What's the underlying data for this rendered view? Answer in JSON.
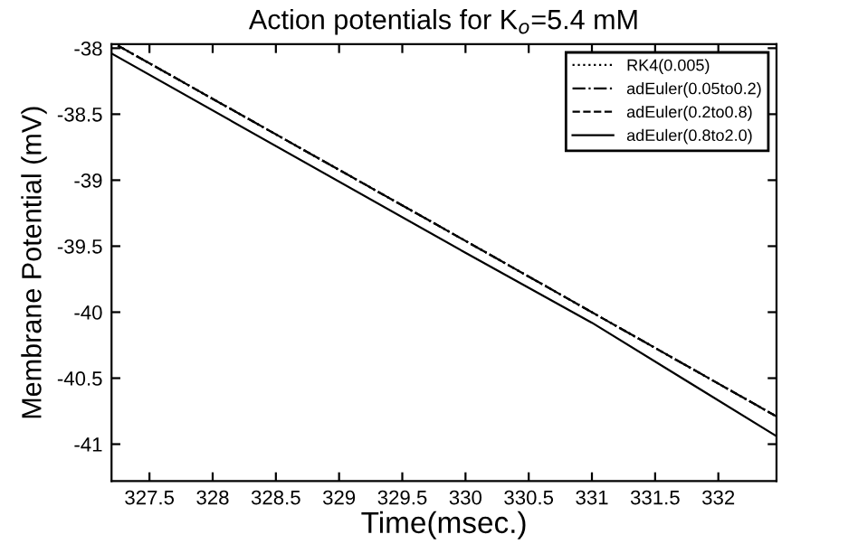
{
  "chart_data": {
    "type": "line",
    "title": "Action potentials for K$_{o}$=5.4 mM",
    "xlabel": "Time(msec.)",
    "ylabel": "Membrane Potential (mV)",
    "x": [
      327.25,
      330,
      332.46
    ],
    "series": [
      {
        "name": "RK4(0.005)",
        "color": "#000000",
        "line_style": "dotted",
        "values": [
          -37.98,
          -39.46,
          -40.79
        ]
      },
      {
        "name": "adEuler(0.05to0.2)",
        "color": "#000000",
        "line_style": "dashdot",
        "values": [
          -37.98,
          -39.46,
          -40.79
        ]
      },
      {
        "name": "adEuler(0.2to0.8)",
        "color": "#000000",
        "line_style": "dashed",
        "values": [
          -37.98,
          -39.46,
          -40.79
        ]
      },
      {
        "name": "adEuler(0.8to2.0)",
        "color": "#000000",
        "line_style": "solid",
        "x": [
          327.2,
          330,
          331,
          332.46
        ],
        "values": [
          -38.04,
          -39.55,
          -40.08,
          -40.94
        ]
      }
    ],
    "xlim": [
      327.2,
      332.46
    ],
    "ylim": [
      -41.28,
      -37.97
    ],
    "xticks": [
      327.5,
      328,
      328.5,
      329,
      329.5,
      330,
      330.5,
      331,
      331.5,
      332
    ],
    "yticks": [
      -38,
      -38.5,
      -39,
      -39.5,
      -40,
      -40.5,
      -41
    ],
    "grid": false,
    "legend": "top right",
    "marker": "none"
  }
}
